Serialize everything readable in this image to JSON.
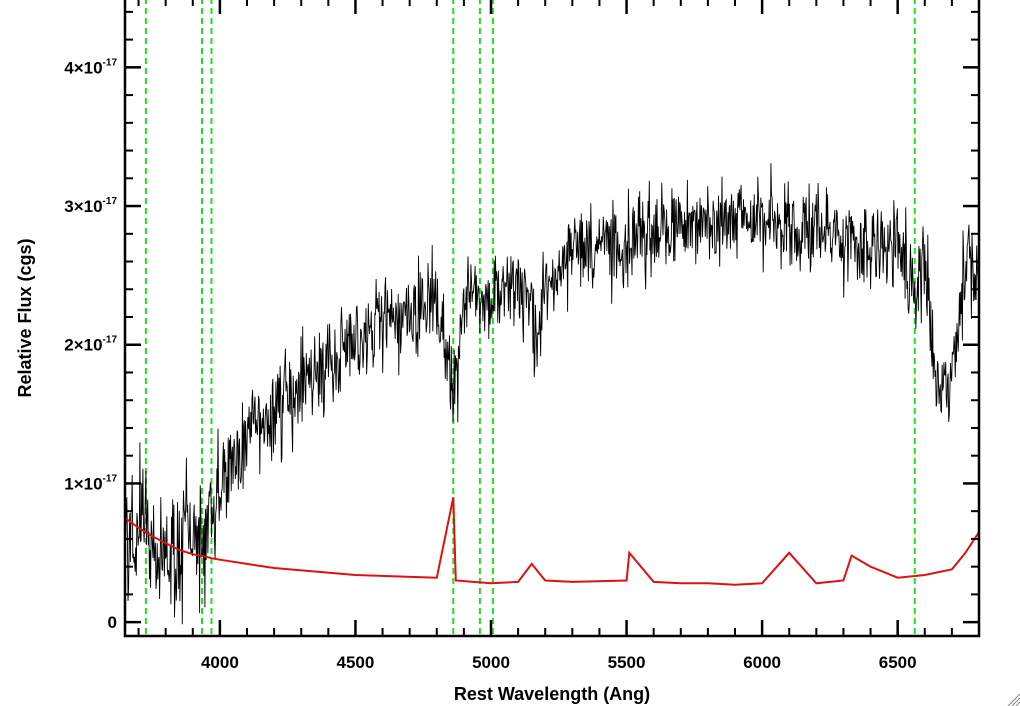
{
  "chart_data": {
    "type": "line",
    "title": "",
    "xlabel": "Rest Wavelength (Ang)",
    "ylabel": "Relative Flux (cgs)",
    "xlim": [
      3650,
      6800
    ],
    "ylim": [
      -1e-18,
      4.5e-17
    ],
    "x_ticks": [
      {
        "value": 4000,
        "label": "4000"
      },
      {
        "value": 4500,
        "label": "4500"
      },
      {
        "value": 5000,
        "label": "5000"
      },
      {
        "value": 5500,
        "label": "5500"
      },
      {
        "value": 6000,
        "label": "6000"
      },
      {
        "value": 6500,
        "label": "6500"
      }
    ],
    "y_ticks": [
      {
        "value": 0,
        "mantissa": "0",
        "exponent": ""
      },
      {
        "value": 1e-17,
        "mantissa": "1×10",
        "exponent": "-17"
      },
      {
        "value": 2e-17,
        "mantissa": "2×10",
        "exponent": "-17"
      },
      {
        "value": 3e-17,
        "mantissa": "3×10",
        "exponent": "-17"
      },
      {
        "value": 4e-17,
        "mantissa": "4×10",
        "exponent": "-17"
      }
    ],
    "colors": {
      "spectrum": "#000000",
      "error": "#dd1111",
      "lines": "#22dd22",
      "axes": "#000000"
    },
    "marker_lines": [
      3727,
      3934,
      3969,
      4861,
      4959,
      5007,
      6563
    ],
    "series": [
      {
        "role": "spectrum",
        "color": "#000000",
        "x": [
          3650,
          3700,
          3727,
          3750,
          3800,
          3850,
          3900,
          3934,
          3969,
          4000,
          4050,
          4100,
          4150,
          4200,
          4300,
          4400,
          4500,
          4600,
          4700,
          4800,
          4861,
          4900,
          5000,
          5100,
          5170,
          5200,
          5300,
          5400,
          5500,
          5600,
          5700,
          5800,
          5900,
          6000,
          6100,
          6200,
          6300,
          6400,
          6500,
          6563,
          6600,
          6650,
          6700,
          6750,
          6800
        ],
        "y": [
          5.5e-18,
          7e-18,
          9e-18,
          6e-18,
          4.5e-18,
          5e-18,
          6e-18,
          5e-18,
          8e-18,
          1e-17,
          1.15e-17,
          1.3e-17,
          1.4e-17,
          1.5e-17,
          1.7e-17,
          1.9e-17,
          2e-17,
          2.15e-17,
          2.2e-17,
          2.3e-17,
          1.6e-17,
          2.3e-17,
          2.4e-17,
          2.45e-17,
          2e-17,
          2.45e-17,
          2.65e-17,
          2.7e-17,
          2.75e-17,
          2.8e-17,
          2.85e-17,
          2.9e-17,
          2.9e-17,
          2.9e-17,
          2.9e-17,
          2.8e-17,
          2.75e-17,
          2.7e-17,
          2.7e-17,
          2.4e-17,
          2.6e-17,
          1.6e-17,
          1.8e-17,
          2.5e-17,
          2.55e-17
        ]
      },
      {
        "role": "error",
        "color": "#dd1111",
        "x": [
          3650,
          3700,
          3750,
          3800,
          3850,
          3900,
          3950,
          3970,
          4000,
          4100,
          4200,
          4500,
          4800,
          4861,
          4870,
          5000,
          5100,
          5150,
          5200,
          5300,
          5500,
          5510,
          5600,
          5700,
          5800,
          5900,
          6000,
          6100,
          6200,
          6300,
          6330,
          6400,
          6500,
          6600,
          6700,
          6750,
          6800
        ],
        "y": [
          7.5e-18,
          6.8e-18,
          6.2e-18,
          5.7e-18,
          5.2e-18,
          4.9e-18,
          4.7e-18,
          4.6e-18,
          4.5e-18,
          4.2e-18,
          3.9e-18,
          3.4e-18,
          3.2e-18,
          9e-18,
          3e-18,
          2.8e-18,
          2.9e-18,
          4.2e-18,
          3e-18,
          2.9e-18,
          3e-18,
          5e-18,
          2.9e-18,
          2.8e-18,
          2.8e-18,
          2.7e-18,
          2.8e-18,
          5e-18,
          2.8e-18,
          3e-18,
          4.8e-18,
          4e-18,
          3.2e-18,
          3.4e-18,
          3.8e-18,
          5e-18,
          6.5e-18
        ]
      }
    ]
  }
}
